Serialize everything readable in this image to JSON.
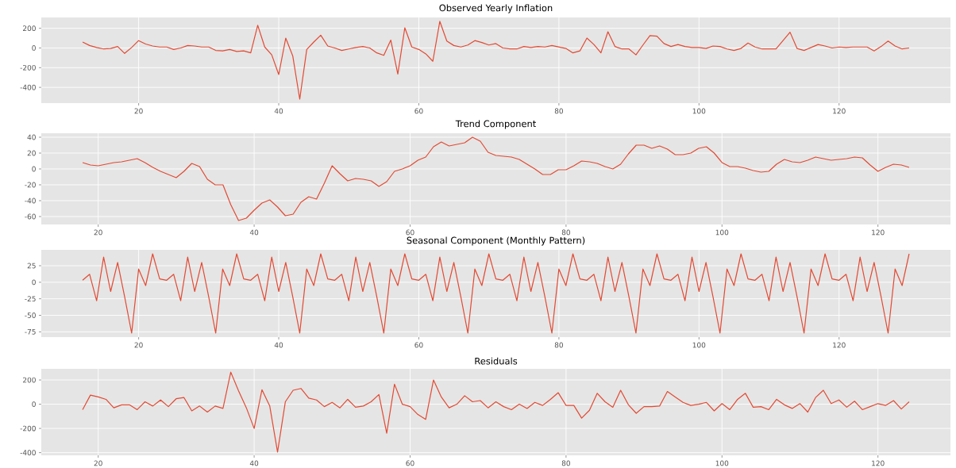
{
  "chart_data": [
    {
      "type": "line",
      "title": "Observed Yearly Inflation",
      "color": "#e24a33",
      "grid": true,
      "xlim": [
        6.1,
        135.9
      ],
      "xticks": [
        20,
        40,
        60,
        80,
        100,
        120
      ],
      "ylim": [
        -560,
        310
      ],
      "yticks": [
        -400,
        -200,
        0,
        200
      ],
      "x": [
        12,
        13,
        14,
        15,
        16,
        17,
        18,
        19,
        20,
        21,
        22,
        23,
        24,
        25,
        26,
        27,
        28,
        29,
        30,
        31,
        32,
        33,
        34,
        35,
        36,
        37,
        38,
        39,
        40,
        41,
        42,
        43,
        44,
        45,
        46,
        47,
        48,
        49,
        50,
        51,
        52,
        53,
        54,
        55,
        56,
        57,
        58,
        59,
        60,
        61,
        62,
        63,
        64,
        65,
        66,
        67,
        68,
        69,
        70,
        71,
        72,
        73,
        74,
        75,
        76,
        77,
        78,
        79,
        80,
        81,
        82,
        83,
        84,
        85,
        86,
        87,
        88,
        89,
        90,
        91,
        92,
        93,
        94,
        95,
        96,
        97,
        98,
        99,
        100,
        101,
        102,
        103,
        104,
        105,
        106,
        107,
        108,
        109,
        110,
        111,
        112,
        113,
        114,
        115,
        116,
        117,
        118,
        119,
        120,
        121,
        122,
        123,
        124,
        125,
        126,
        127,
        128,
        129,
        130
      ],
      "values": [
        60,
        25,
        5,
        -10,
        -5,
        15,
        -55,
        5,
        75,
        40,
        20,
        10,
        10,
        -15,
        0,
        25,
        20,
        10,
        10,
        -25,
        -30,
        -15,
        -35,
        -30,
        -50,
        230,
        10,
        -70,
        -270,
        100,
        -80,
        -520,
        -15,
        60,
        130,
        20,
        0,
        -25,
        -10,
        5,
        15,
        0,
        -50,
        -75,
        80,
        -265,
        205,
        10,
        -15,
        -60,
        -135,
        270,
        70,
        25,
        10,
        30,
        75,
        55,
        30,
        45,
        0,
        -10,
        -10,
        15,
        5,
        15,
        10,
        25,
        10,
        -5,
        -50,
        -30,
        100,
        35,
        -50,
        165,
        15,
        -10,
        -10,
        -70,
        30,
        125,
        120,
        45,
        15,
        35,
        15,
        5,
        5,
        -5,
        20,
        15,
        -10,
        -25,
        -5,
        50,
        10,
        -10,
        -10,
        -10,
        75,
        160,
        -5,
        -25,
        5,
        35,
        20,
        0,
        10,
        5,
        10,
        10,
        10,
        -30,
        15,
        70,
        20,
        -10,
        0
      ]
    },
    {
      "type": "line",
      "title": "Trend Component",
      "color": "#e24a33",
      "grid": true,
      "xlim": [
        12.7,
        129.3
      ],
      "xticks": [
        20,
        40,
        60,
        80,
        100,
        120
      ],
      "ylim": [
        -70,
        45
      ],
      "yticks": [
        -60,
        -40,
        -20,
        0,
        20,
        40
      ],
      "x": [
        18,
        19,
        20,
        21,
        22,
        23,
        24,
        25,
        26,
        27,
        28,
        29,
        30,
        31,
        32,
        33,
        34,
        35,
        36,
        37,
        38,
        39,
        40,
        41,
        42,
        43,
        44,
        45,
        46,
        47,
        48,
        49,
        50,
        51,
        52,
        53,
        54,
        55,
        56,
        57,
        58,
        59,
        60,
        61,
        62,
        63,
        64,
        65,
        66,
        67,
        68,
        69,
        70,
        71,
        72,
        73,
        74,
        75,
        76,
        77,
        78,
        79,
        80,
        81,
        82,
        83,
        84,
        85,
        86,
        87,
        88,
        89,
        90,
        91,
        92,
        93,
        94,
        95,
        96,
        97,
        98,
        99,
        100,
        101,
        102,
        103,
        104,
        105,
        106,
        107,
        108,
        109,
        110,
        111,
        112,
        113,
        114,
        115,
        116,
        117,
        118,
        119,
        120,
        121,
        122,
        123,
        124
      ],
      "values": [
        8,
        5,
        4,
        6,
        8,
        9,
        11,
        13,
        8,
        2,
        -3,
        -7,
        -11,
        -3,
        7,
        3,
        -13,
        -20,
        -20,
        -45,
        -65,
        -62,
        -52,
        -43,
        -39,
        -48,
        -59,
        -57,
        -42,
        -35,
        -38,
        -18,
        4,
        -6,
        -15,
        -12,
        -13,
        -15,
        -22,
        -16,
        -3,
        0,
        4,
        11,
        15,
        28,
        34,
        29,
        31,
        33,
        40,
        35,
        21,
        17,
        16,
        15,
        12,
        6,
        0,
        -7,
        -7,
        -1,
        -1,
        4,
        10,
        9,
        7,
        3,
        0,
        6,
        19,
        30,
        30,
        26,
        29,
        25,
        18,
        18,
        20,
        26,
        28,
        20,
        8,
        3,
        3,
        1,
        -2,
        -4,
        -3,
        6,
        12,
        9,
        8,
        11,
        15,
        13,
        11,
        12,
        13,
        15,
        14,
        5,
        -3,
        2,
        6,
        5,
        2
      ]
    },
    {
      "type": "line",
      "title": "Seasonal Component (Monthly Pattern)",
      "color": "#e24a33",
      "grid": true,
      "xlim": [
        6.1,
        135.9
      ],
      "xticks": [
        20,
        40,
        60,
        80,
        100,
        120
      ],
      "ylim": [
        -83,
        49
      ],
      "yticks": [
        -75,
        -50,
        -25,
        0,
        25
      ],
      "x": [
        12,
        13,
        14,
        15,
        16,
        17,
        18,
        19,
        20,
        21,
        22,
        23,
        24,
        25,
        26,
        27,
        28,
        29,
        30,
        31,
        32,
        33,
        34,
        35,
        36,
        37,
        38,
        39,
        40,
        41,
        42,
        43,
        44,
        45,
        46,
        47,
        48,
        49,
        50,
        51,
        52,
        53,
        54,
        55,
        56,
        57,
        58,
        59,
        60,
        61,
        62,
        63,
        64,
        65,
        66,
        67,
        68,
        69,
        70,
        71,
        72,
        73,
        74,
        75,
        76,
        77,
        78,
        79,
        80,
        81,
        82,
        83,
        84,
        85,
        86,
        87,
        88,
        89,
        90,
        91,
        92,
        93,
        94,
        95,
        96,
        97,
        98,
        99,
        100,
        101,
        102,
        103,
        104,
        105,
        106,
        107,
        108,
        109,
        110,
        111,
        112,
        113,
        114,
        115,
        116,
        117,
        118,
        119,
        120,
        121,
        122,
        123,
        124,
        125,
        126,
        127,
        128,
        129,
        130
      ],
      "values": [
        3,
        12,
        -28,
        38,
        -14,
        30,
        -22,
        -77,
        20,
        -5,
        43,
        5,
        3,
        12,
        -28,
        38,
        -14,
        30,
        -22,
        -77,
        20,
        -5,
        43,
        5,
        3,
        12,
        -28,
        38,
        -14,
        30,
        -22,
        -77,
        20,
        -5,
        43,
        5,
        3,
        12,
        -28,
        38,
        -14,
        30,
        -22,
        -77,
        20,
        -5,
        43,
        5,
        3,
        12,
        -28,
        38,
        -14,
        30,
        -22,
        -77,
        20,
        -5,
        43,
        5,
        3,
        12,
        -28,
        38,
        -14,
        30,
        -22,
        -77,
        20,
        -5,
        43,
        5,
        3,
        12,
        -28,
        38,
        -14,
        30,
        -22,
        -77,
        20,
        -5,
        43,
        5,
        3,
        12,
        -28,
        38,
        -14,
        30,
        -22,
        -77,
        20,
        -5,
        43,
        5,
        3,
        12,
        -28,
        38,
        -14,
        30,
        -22,
        -77,
        20,
        -5,
        43,
        5,
        3,
        12,
        -28,
        38,
        -14,
        30,
        -22,
        -77,
        20,
        -5,
        43
      ]
    },
    {
      "type": "line",
      "title": "Residuals",
      "color": "#e24a33",
      "grid": true,
      "xlim": [
        12.7,
        129.3
      ],
      "xticks": [
        20,
        40,
        60,
        80,
        100,
        120
      ],
      "ylim": [
        -422,
        292
      ],
      "yticks": [
        -400,
        -200,
        0,
        200
      ],
      "x": [
        18,
        19,
        20,
        21,
        22,
        23,
        24,
        25,
        26,
        27,
        28,
        29,
        30,
        31,
        32,
        33,
        34,
        35,
        36,
        37,
        38,
        39,
        40,
        41,
        42,
        43,
        44,
        45,
        46,
        47,
        48,
        49,
        50,
        51,
        52,
        53,
        54,
        55,
        56,
        57,
        58,
        59,
        60,
        61,
        62,
        63,
        64,
        65,
        66,
        67,
        68,
        69,
        70,
        71,
        72,
        73,
        74,
        75,
        76,
        77,
        78,
        79,
        80,
        81,
        82,
        83,
        84,
        85,
        86,
        87,
        88,
        89,
        90,
        91,
        92,
        93,
        94,
        95,
        96,
        97,
        98,
        99,
        100,
        101,
        102,
        103,
        104,
        105,
        106,
        107,
        108,
        109,
        110,
        111,
        112,
        113,
        114,
        115,
        116,
        117,
        118,
        119,
        120,
        121,
        122,
        123,
        124
      ],
      "values": [
        -45,
        75,
        60,
        40,
        -30,
        -5,
        -5,
        -45,
        20,
        -15,
        35,
        -20,
        45,
        55,
        -55,
        -15,
        -65,
        -15,
        -35,
        265,
        110,
        -30,
        -200,
        120,
        -15,
        -395,
        20,
        115,
        130,
        50,
        35,
        -20,
        15,
        -30,
        40,
        -25,
        -15,
        20,
        80,
        -240,
        165,
        0,
        -20,
        -85,
        -125,
        200,
        60,
        -30,
        0,
        70,
        20,
        30,
        -30,
        20,
        -20,
        -45,
        0,
        -35,
        15,
        -10,
        40,
        95,
        -10,
        -10,
        -115,
        -50,
        90,
        20,
        -25,
        115,
        -5,
        -75,
        -20,
        -20,
        -15,
        105,
        60,
        15,
        -10,
        0,
        15,
        -55,
        5,
        -45,
        40,
        90,
        -25,
        -20,
        -45,
        40,
        -5,
        -35,
        5,
        -65,
        55,
        115,
        5,
        35,
        -25,
        25,
        -45,
        -20,
        5,
        -10,
        30,
        -40,
        20
      ]
    }
  ]
}
